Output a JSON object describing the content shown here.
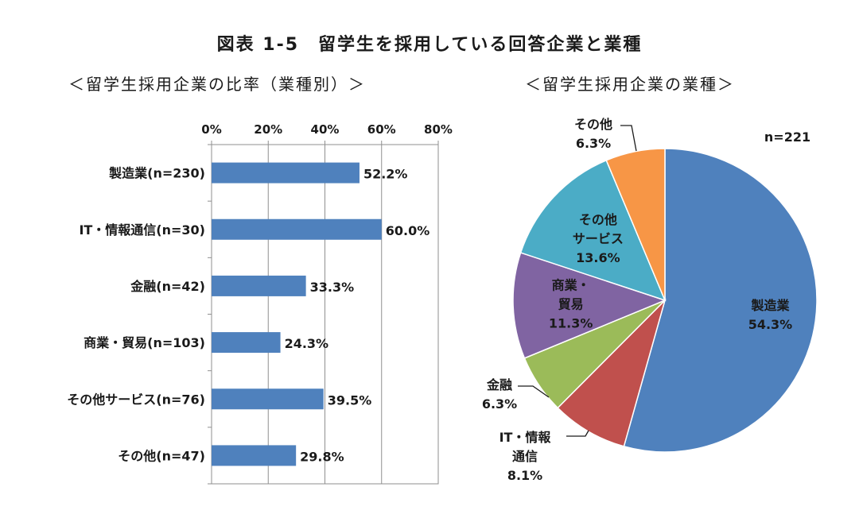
{
  "figure_title": "図表 1-5　留学生を採用している回答企業と業種",
  "chart_data": [
    {
      "type": "bar",
      "orientation": "horizontal",
      "title": "＜留学生採用企業の比率（業種別）＞",
      "categories": [
        "製造業(n=230)",
        "IT・情報通信(n=30)",
        "金融(n=42)",
        "商業・貿易(n=103)",
        "その他サービス(n=76)",
        "その他(n=47)"
      ],
      "values": [
        52.2,
        60.0,
        33.3,
        24.3,
        39.5,
        29.8
      ],
      "data_labels": [
        "52.2%",
        "60.0%",
        "33.3%",
        "24.3%",
        "39.5%",
        "29.8%"
      ],
      "xlim": [
        0,
        80
      ],
      "xticks": [
        "0%",
        "20%",
        "40%",
        "60%",
        "80%"
      ],
      "x_axis_position": "top",
      "grid": true,
      "color": "#4F81BD"
    },
    {
      "type": "pie",
      "title": "＜留学生採用企業の業種＞",
      "note": "n=221",
      "slices": [
        {
          "lines": [
            "製造業"
          ],
          "value": 54.3,
          "label": "54.3%",
          "color": "#4F81BD"
        },
        {
          "lines": [
            "IT・情報",
            "通信"
          ],
          "value": 8.1,
          "label": "8.1%",
          "color": "#C0504D"
        },
        {
          "lines": [
            "金融"
          ],
          "value": 6.3,
          "label": "6.3%",
          "color": "#9BBB59"
        },
        {
          "lines": [
            "商業・",
            "貿易"
          ],
          "value": 11.3,
          "label": "11.3%",
          "color": "#8064A2"
        },
        {
          "lines": [
            "その他",
            "サービス"
          ],
          "value": 13.6,
          "label": "13.6%",
          "color": "#4BACC6"
        },
        {
          "lines": [
            "その他"
          ],
          "value": 6.3,
          "label": "6.3%",
          "color": "#F79646"
        }
      ]
    }
  ]
}
